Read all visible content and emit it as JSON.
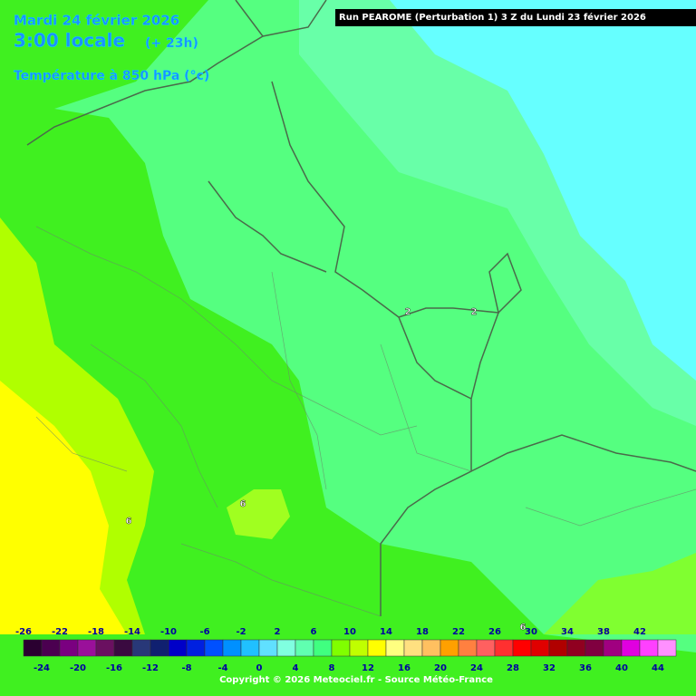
{
  "header": {
    "date": "Mardi 24 février 2026",
    "time": "3:00 locale",
    "lead": "(+ 23h)",
    "field": "Température à 850 hPa (°c)",
    "run": "Run PEAROME (Perturbation 1) 3 Z du Lundi 23 février 2026"
  },
  "contour_labels": [
    "2",
    "2",
    "6",
    "6",
    "6"
  ],
  "legend": {
    "ticks": [
      -26,
      -24,
      -22,
      -20,
      -18,
      -16,
      -14,
      -12,
      -10,
      -8,
      -6,
      -4,
      -2,
      0,
      2,
      4,
      6,
      8,
      10,
      12,
      14,
      16,
      18,
      20,
      22,
      24,
      26,
      28,
      30,
      32,
      34,
      36,
      38,
      40,
      42,
      44
    ],
    "colors": [
      "#2a0030",
      "#4b0050",
      "#7a0080",
      "#9a109a",
      "#6a1060",
      "#3a0a40",
      "#283878",
      "#102070",
      "#0000c8",
      "#0020e0",
      "#0050ff",
      "#0090ff",
      "#20c0ff",
      "#60e0ff",
      "#80ffe0",
      "#60ffb0",
      "#40ff80",
      "#80ff00",
      "#c0ff00",
      "#ffff00",
      "#ffff80",
      "#ffe080",
      "#ffc060",
      "#ffa000",
      "#ff8040",
      "#ff6060",
      "#ff3030",
      "#ff0000",
      "#e00000",
      "#b00000",
      "#900020",
      "#800040",
      "#a00080",
      "#e000e0",
      "#ff40ff",
      "#ff90ff"
    ]
  },
  "footer": {
    "copyright": "Copyright © 2026 Meteociel.fr - Source Météo-France"
  }
}
